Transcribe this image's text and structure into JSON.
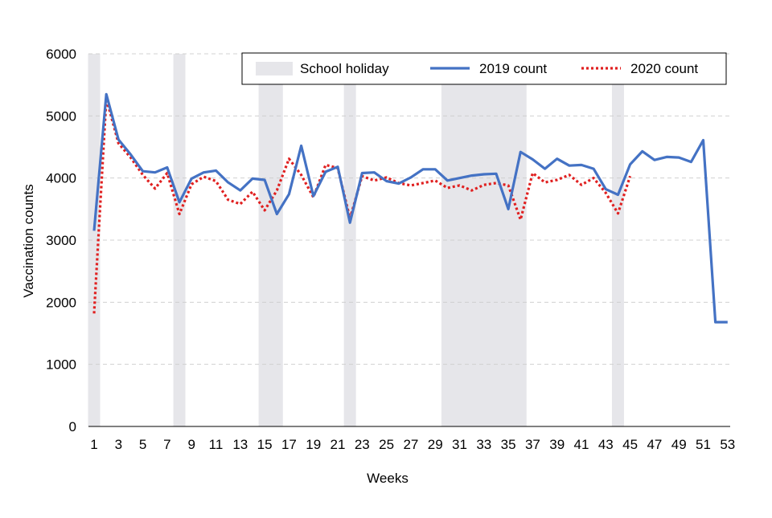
{
  "chart_data": {
    "type": "line",
    "title": "",
    "xlabel": "Weeks",
    "ylabel": "Vaccination counts",
    "xlim": [
      1,
      53
    ],
    "ylim": [
      0,
      6000
    ],
    "y_ticks": [
      "0",
      "1000",
      "2000",
      "3000",
      "4000",
      "5000",
      "6000"
    ],
    "x_ticks": [
      "1",
      "3",
      "5",
      "7",
      "9",
      "11",
      "13",
      "15",
      "17",
      "19",
      "21",
      "23",
      "25",
      "27",
      "29",
      "31",
      "33",
      "35",
      "37",
      "39",
      "41",
      "43",
      "45",
      "47",
      "49",
      "51",
      "53"
    ],
    "grid": true,
    "legend_position": "top-right",
    "legend": {
      "holiday_label": "School holiday",
      "series1_label": "2019 count",
      "series2_label": "2020 count"
    },
    "holiday_color": "#e6e6ea",
    "school_holidays": [
      {
        "start_week": 1,
        "end_week": 1
      },
      {
        "start_week": 8,
        "end_week": 8
      },
      {
        "start_week": 15,
        "end_week": 16
      },
      {
        "start_week": 22,
        "end_week": 22
      },
      {
        "start_week": 30,
        "end_week": 36
      },
      {
        "start_week": 44,
        "end_week": 44
      }
    ],
    "series": [
      {
        "name": "2019 count",
        "color": "#4472c4",
        "style": "solid",
        "x": [
          1,
          2,
          3,
          4,
          5,
          6,
          7,
          8,
          9,
          10,
          11,
          12,
          13,
          14,
          15,
          16,
          17,
          18,
          19,
          20,
          21,
          22,
          23,
          24,
          25,
          26,
          27,
          28,
          29,
          30,
          31,
          32,
          33,
          34,
          35,
          36,
          37,
          38,
          39,
          40,
          41,
          42,
          43,
          44,
          45,
          46,
          47,
          48,
          49,
          50,
          51,
          52,
          53
        ],
        "values": [
          3150,
          5350,
          4620,
          4380,
          4110,
          4090,
          4170,
          3610,
          3990,
          4090,
          4120,
          3930,
          3800,
          3990,
          3970,
          3420,
          3740,
          4520,
          3710,
          4100,
          4180,
          3280,
          4080,
          4090,
          3950,
          3910,
          4010,
          4140,
          4140,
          3960,
          4000,
          4040,
          4060,
          4070,
          3500,
          4420,
          4300,
          4150,
          4310,
          4200,
          4210,
          4150,
          3820,
          3730,
          4220,
          4430,
          4290,
          4340,
          4330,
          4260,
          4610,
          1680,
          1680
        ]
      },
      {
        "name": "2020 count",
        "color": "#e02020",
        "style": "dotted",
        "x": [
          1,
          2,
          3,
          4,
          5,
          6,
          7,
          8,
          9,
          10,
          11,
          12,
          13,
          14,
          15,
          16,
          17,
          18,
          19,
          20,
          21,
          22,
          23,
          24,
          25,
          26,
          27,
          28,
          29,
          30,
          31,
          32,
          33,
          34,
          35,
          36,
          37,
          38,
          39,
          40,
          41,
          42,
          43,
          44,
          45
        ],
        "values": [
          1820,
          5280,
          4560,
          4330,
          4050,
          3830,
          4080,
          3420,
          3900,
          4020,
          3950,
          3650,
          3580,
          3780,
          3480,
          3800,
          4310,
          4050,
          3690,
          4210,
          4160,
          3350,
          4030,
          3960,
          4010,
          3920,
          3880,
          3920,
          3960,
          3840,
          3880,
          3800,
          3890,
          3920,
          3880,
          3330,
          4080,
          3930,
          3970,
          4050,
          3890,
          4000,
          3760,
          3430,
          4030
        ]
      }
    ]
  }
}
